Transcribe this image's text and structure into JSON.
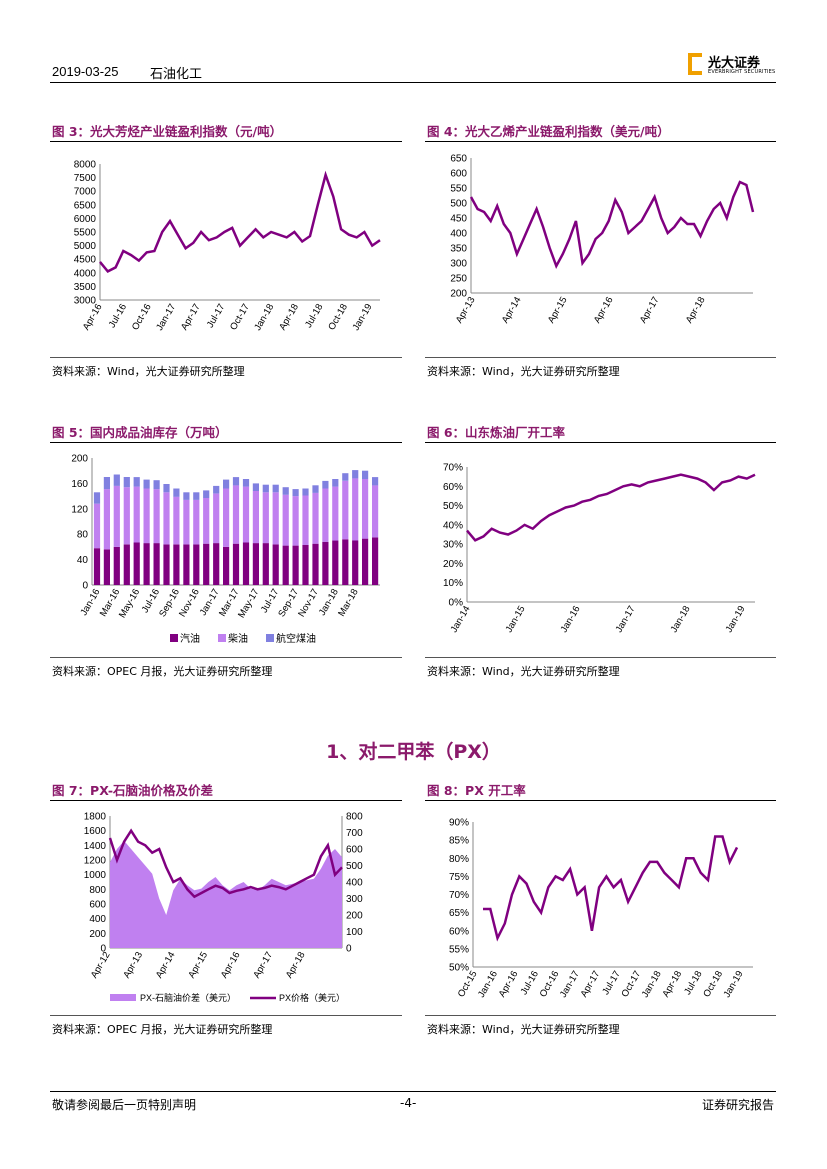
{
  "header": {
    "date": "2019-03-25",
    "sector": "石油化工",
    "logo_cn": "光大证券",
    "logo_en": "EVERBRIGHT SECURITIES"
  },
  "section": {
    "title": "1、对二甲苯（PX）"
  },
  "footer": {
    "disclaimer": "敬请参阅最后一页特别声明",
    "page": "-4-",
    "type": "证券研究报告"
  },
  "colors": {
    "accent": "#8b1a6b",
    "purple": "#800080",
    "light_purple": "#c080f0",
    "blue_purple": "#8080e0"
  },
  "figures": [
    {
      "title": "图 3：光大芳烃产业链盈利指数（元/吨）",
      "source": "资料来源：Wind，光大证券研究所整理"
    },
    {
      "title": "图 4：光大乙烯产业链盈利指数（美元/吨）",
      "source": "资料来源：Wind，光大证券研究所整理"
    },
    {
      "title": "图 5：国内成品油库存（万吨）",
      "source": "资料来源：OPEC 月报，光大证券研究所整理"
    },
    {
      "title": "图 6：山东炼油厂开工率",
      "source": "资料来源：Wind，光大证券研究所整理"
    },
    {
      "title": "图 7：PX-石脑油价格及价差",
      "source": "资料来源：OPEC 月报，光大证券研究所整理"
    },
    {
      "title": "图 8：PX 开工率",
      "source": "资料来源：Wind，光大证券研究所整理"
    }
  ],
  "chart_data": [
    {
      "id": "fig3",
      "type": "line",
      "title": "光大芳烃产业链盈利指数（元/吨）",
      "ylim": [
        3000,
        8000
      ],
      "yticks": [
        "3000",
        "3500",
        "4000",
        "4500",
        "5000",
        "5500",
        "6000",
        "6500",
        "7000",
        "7500",
        "8000"
      ],
      "xticks": [
        "Apr-16",
        "Jul-16",
        "Oct-16",
        "Jan-17",
        "Apr-17",
        "Jul-17",
        "Oct-17",
        "Jan-18",
        "Apr-18",
        "Jul-18",
        "Oct-18",
        "Jan-19"
      ],
      "series": [
        {
          "name": "盈利指数",
          "values": [
            4400,
            4050,
            4200,
            4800,
            4650,
            4450,
            4750,
            4800,
            5500,
            5900,
            5400,
            4900,
            5100,
            5500,
            5200,
            5300,
            5500,
            5650,
            5000,
            5300,
            5600,
            5300,
            5500,
            5400,
            5300,
            5500,
            5150,
            5350,
            6500,
            7600,
            6800,
            5600,
            5400,
            5300,
            5500,
            5000,
            5200
          ]
        }
      ]
    },
    {
      "id": "fig4",
      "type": "line",
      "title": "光大乙烯产业链盈利指数（美元/吨）",
      "ylim": [
        200,
        650
      ],
      "yticks": [
        "200",
        "250",
        "300",
        "350",
        "400",
        "450",
        "500",
        "550",
        "600",
        "650"
      ],
      "xticks": [
        "Apr-13",
        "Apr-14",
        "Apr-15",
        "Apr-16",
        "Apr-17",
        "Apr-18"
      ],
      "series": [
        {
          "name": "盈利指数",
          "values": [
            520,
            480,
            470,
            440,
            490,
            430,
            400,
            330,
            380,
            430,
            480,
            420,
            350,
            290,
            330,
            380,
            440,
            300,
            330,
            380,
            400,
            440,
            510,
            470,
            400,
            420,
            440,
            480,
            520,
            450,
            400,
            420,
            450,
            430,
            430,
            390,
            440,
            480,
            500,
            450,
            520,
            570,
            560,
            470
          ]
        }
      ]
    },
    {
      "id": "fig5",
      "type": "stacked-bar",
      "title": "国内成品油库存（万吨）",
      "ylim": [
        0,
        200
      ],
      "yticks": [
        "0",
        "40",
        "80",
        "120",
        "160",
        "200"
      ],
      "xticks": [
        "Jan-16",
        "Mar-16",
        "May-16",
        "Jul-16",
        "Sep-16",
        "Nov-16",
        "Jan-17",
        "Mar-17",
        "May-17",
        "Jul-17",
        "Sep-17",
        "Nov-17",
        "Jan-18",
        "Mar-18"
      ],
      "legend": [
        "汽油",
        "柴油",
        "航空煤油"
      ],
      "series": [
        {
          "name": "汽油",
          "values": [
            58,
            56,
            60,
            64,
            67,
            66,
            66,
            64,
            64,
            64,
            64,
            65,
            66,
            60,
            65,
            67,
            66,
            66,
            64,
            62,
            62,
            63,
            65,
            68,
            70,
            72,
            70,
            73,
            75
          ]
        },
        {
          "name": "柴油",
          "values": [
            70,
            95,
            96,
            90,
            88,
            86,
            85,
            82,
            75,
            70,
            70,
            72,
            78,
            92,
            92,
            88,
            82,
            80,
            82,
            80,
            78,
            78,
            80,
            84,
            85,
            92,
            98,
            94,
            82
          ]
        },
        {
          "name": "航空煤油",
          "values": [
            18,
            19,
            18,
            16,
            15,
            14,
            14,
            13,
            13,
            12,
            12,
            12,
            12,
            14,
            13,
            12,
            12,
            12,
            12,
            12,
            11,
            11,
            12,
            12,
            12,
            12,
            13,
            13,
            13
          ]
        }
      ]
    },
    {
      "id": "fig6",
      "type": "line",
      "title": "山东炼油厂开工率",
      "ylim": [
        0,
        70
      ],
      "yticks": [
        "0%",
        "10%",
        "20%",
        "30%",
        "40%",
        "50%",
        "60%",
        "70%"
      ],
      "xticks": [
        "Jan-14",
        "Jan-15",
        "Jan-16",
        "Jan-17",
        "Jan-18",
        "Jan-19"
      ],
      "series": [
        {
          "name": "开工率",
          "values": [
            37,
            32,
            34,
            38,
            36,
            35,
            37,
            40,
            38,
            42,
            45,
            47,
            49,
            50,
            52,
            53,
            55,
            56,
            58,
            60,
            61,
            60,
            62,
            63,
            64,
            65,
            66,
            65,
            64,
            62,
            58,
            62,
            63,
            65,
            64,
            66
          ]
        }
      ]
    },
    {
      "id": "fig7",
      "type": "line-area",
      "title": "PX-石脑油价格及价差",
      "ylim_left": [
        0,
        1800
      ],
      "ylim_right": [
        0,
        800
      ],
      "yticks_left": [
        "0",
        "200",
        "400",
        "600",
        "800",
        "1000",
        "1200",
        "1400",
        "1600",
        "1800"
      ],
      "yticks_right": [
        "0",
        "100",
        "200",
        "300",
        "400",
        "500",
        "600",
        "700",
        "800"
      ],
      "xticks": [
        "Apr-12",
        "Apr-13",
        "Apr-14",
        "Apr-15",
        "Apr-16",
        "Apr-17",
        "Apr-18"
      ],
      "legend": [
        "PX-石脑油价差（美元）",
        "PX价格（美元）"
      ],
      "series": [
        {
          "name": "PX-石脑油价差（美元）",
          "axis": "right",
          "values": [
            520,
            600,
            650,
            600,
            550,
            500,
            450,
            300,
            200,
            350,
            420,
            380,
            350,
            360,
            400,
            430,
            380,
            350,
            380,
            400,
            360,
            350,
            380,
            420,
            400,
            380,
            390,
            400,
            410,
            420,
            480,
            560,
            600,
            550
          ]
        },
        {
          "name": "PX价格（美元）",
          "axis": "left",
          "values": [
            1500,
            1200,
            1450,
            1600,
            1450,
            1400,
            1300,
            1350,
            1100,
            900,
            950,
            800,
            700,
            750,
            800,
            850,
            820,
            750,
            780,
            800,
            830,
            800,
            820,
            850,
            830,
            800,
            850,
            900,
            950,
            1000,
            1250,
            1400,
            1000,
            1100
          ]
        }
      ]
    },
    {
      "id": "fig8",
      "type": "line",
      "title": "PX 开工率",
      "ylim": [
        50,
        90
      ],
      "yticks": [
        "50%",
        "55%",
        "60%",
        "65%",
        "70%",
        "75%",
        "80%",
        "85%",
        "90%"
      ],
      "xticks": [
        "Oct-15",
        "Jan-16",
        "Apr-16",
        "Jul-16",
        "Oct-16",
        "Jan-17",
        "Apr-17",
        "Jul-17",
        "Oct-17",
        "Jan-18",
        "Apr-18",
        "Jul-18",
        "Oct-18",
        "Jan-19"
      ],
      "series": [
        {
          "name": "开工率",
          "values": [
            66,
            66,
            58,
            62,
            70,
            75,
            73,
            68,
            65,
            72,
            75,
            74,
            77,
            70,
            72,
            60,
            72,
            75,
            72,
            74,
            68,
            72,
            76,
            79,
            79,
            76,
            74,
            72,
            80,
            80,
            76,
            74,
            86,
            86,
            79,
            83
          ]
        }
      ]
    }
  ]
}
